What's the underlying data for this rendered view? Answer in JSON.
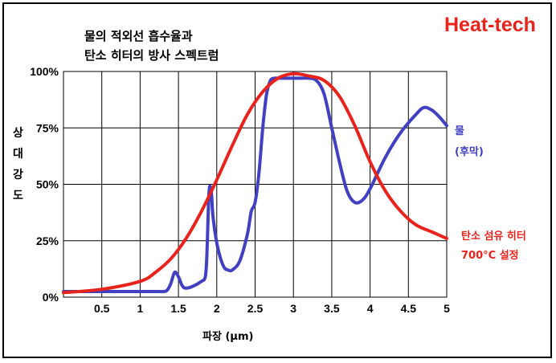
{
  "brand": {
    "text": "Heat-tech",
    "color": "#e8231c"
  },
  "chart_data": {
    "type": "line",
    "title": [
      "물의 적외선 흡수율과",
      "탄소 히터의 방사 스펙트럼"
    ],
    "xlabel": "파장 (μm)",
    "ylabel": [
      "상",
      "대",
      "강",
      "도"
    ],
    "xlim": [
      0,
      5
    ],
    "ylim": [
      0,
      100
    ],
    "x_ticks": [
      0.5,
      1,
      1.5,
      2,
      2.5,
      3,
      3.5,
      4,
      4.5,
      5
    ],
    "x_tick_labels": [
      "0.5",
      "1",
      "1.5",
      "2",
      "2.5",
      "3",
      "3.5",
      "4",
      "4.5",
      "5"
    ],
    "y_ticks": [
      0,
      25,
      50,
      75,
      100
    ],
    "y_tick_labels": [
      "0%",
      "25%",
      "50%",
      "75%",
      "100%"
    ],
    "grid": true,
    "series": [
      {
        "name": "물 (후막)",
        "legend_lines": [
          "물",
          "(후막)"
        ],
        "color": "#4040c0",
        "x": [
          0.0,
          0.5,
          1.0,
          1.2,
          1.3,
          1.35,
          1.4,
          1.45,
          1.5,
          1.55,
          1.6,
          1.7,
          1.8,
          1.85,
          1.87,
          1.9,
          1.93,
          1.95,
          2.0,
          2.05,
          2.1,
          2.15,
          2.2,
          2.3,
          2.4,
          2.45,
          2.5,
          2.55,
          2.6,
          2.65,
          2.7,
          2.75,
          2.8,
          2.9,
          3.0,
          3.1,
          3.2,
          3.3,
          3.4,
          3.5,
          3.6,
          3.7,
          3.8,
          3.9,
          4.0,
          4.2,
          4.4,
          4.6,
          4.7,
          4.8,
          4.9,
          5.0
        ],
        "y": [
          2.5,
          2.5,
          2.5,
          2.5,
          2.5,
          3,
          6,
          11,
          9,
          5,
          4,
          5,
          7,
          9,
          18,
          47,
          46,
          36,
          24,
          17,
          13,
          12,
          12,
          16,
          28,
          38,
          42,
          55,
          75,
          90,
          96,
          97,
          97,
          97,
          97,
          97,
          97,
          96,
          90,
          75,
          60,
          47,
          42,
          43,
          48,
          62,
          73,
          81,
          84,
          83,
          80,
          76
        ]
      },
      {
        "name": "탄소 섬유 히터 700°C 설정",
        "legend_lines": [
          "탄소 섬유 히터",
          "700°C 설정"
        ],
        "color": "#e8231c",
        "x": [
          0.0,
          0.5,
          1.0,
          1.2,
          1.4,
          1.6,
          1.8,
          2.0,
          2.2,
          2.4,
          2.6,
          2.8,
          3.0,
          3.2,
          3.4,
          3.6,
          3.8,
          4.0,
          4.2,
          4.4,
          4.6,
          4.8,
          5.0
        ],
        "y": [
          2,
          3.5,
          7,
          11,
          17,
          26,
          38,
          52,
          67,
          81,
          91,
          97,
          99,
          98,
          96,
          89,
          76,
          60,
          47,
          38,
          32,
          29,
          26
        ]
      }
    ]
  }
}
